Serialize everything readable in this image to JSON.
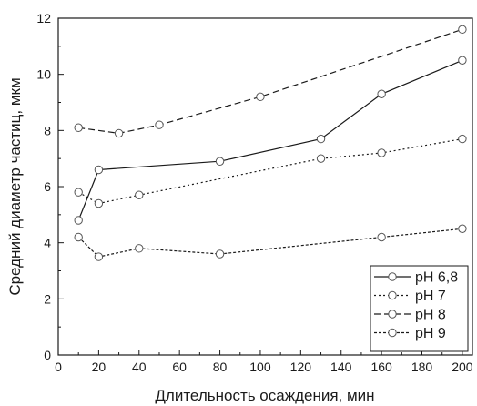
{
  "chart_data": {
    "type": "line",
    "title": "",
    "xlabel": "Длительность осаждения, мин",
    "ylabel": "Средний диаметр частиц, мкм",
    "xlim": [
      0,
      205
    ],
    "ylim": [
      0,
      12
    ],
    "xticks": [
      0,
      20,
      40,
      60,
      80,
      100,
      120,
      140,
      160,
      180,
      200
    ],
    "yticks": [
      0,
      2,
      4,
      6,
      8,
      10,
      12
    ],
    "grid": false,
    "legend_position": "bottom-right",
    "series": [
      {
        "name": "pH 6,8",
        "style": "solid",
        "x": [
          10,
          20,
          80,
          130,
          160,
          200
        ],
        "y": [
          4.8,
          6.6,
          6.9,
          7.7,
          9.3,
          10.5
        ]
      },
      {
        "name": "pH 7",
        "style": "dotted",
        "x": [
          10,
          20,
          40,
          130,
          160,
          200
        ],
        "y": [
          5.8,
          5.4,
          5.7,
          7.0,
          7.2,
          7.7
        ]
      },
      {
        "name": "pH 8",
        "style": "dashed",
        "x": [
          10,
          30,
          50,
          100,
          200
        ],
        "y": [
          8.1,
          7.9,
          8.2,
          9.2,
          11.6
        ]
      },
      {
        "name": "pH 9",
        "style": "short-dash",
        "x": [
          10,
          20,
          40,
          80,
          160,
          200
        ],
        "y": [
          4.2,
          3.5,
          3.8,
          3.6,
          4.2,
          4.5
        ]
      }
    ],
    "colors": {
      "line": "#1a1a1a",
      "marker_stroke": "#555555",
      "marker_fill": "#ffffff"
    }
  }
}
